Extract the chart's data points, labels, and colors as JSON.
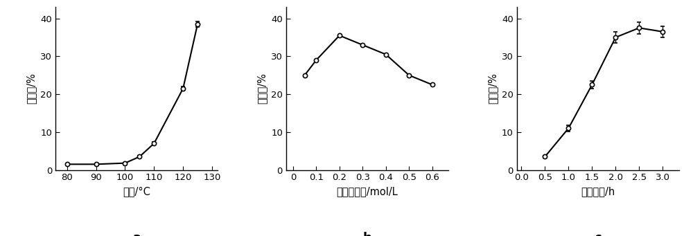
{
  "panel_a": {
    "x": [
      80,
      90,
      100,
      105,
      110,
      120,
      125
    ],
    "y": [
      1.5,
      1.5,
      1.8,
      3.5,
      7.0,
      21.5,
      38.5
    ],
    "yerr": [
      0.2,
      0.15,
      0.2,
      0.25,
      0.4,
      0.5,
      0.7
    ],
    "xlabel": "温度/°C",
    "ylabel": "降解率/%",
    "xlim": [
      76,
      132
    ],
    "ylim": [
      0,
      43
    ],
    "xticks": [
      80,
      90,
      100,
      110,
      120,
      130
    ],
    "yticks": [
      0,
      10,
      20,
      30,
      40
    ],
    "label": "a"
  },
  "panel_b": {
    "x": [
      0.05,
      0.1,
      0.2,
      0.3,
      0.4,
      0.5,
      0.6
    ],
    "y": [
      25.0,
      29.0,
      35.5,
      33.0,
      30.5,
      25.0,
      22.5
    ],
    "yerr": [
      0.0,
      0.0,
      0.0,
      0.0,
      0.0,
      0.0,
      0.0
    ],
    "xlabel": "双氧水浓度/mol/L",
    "ylabel": "降解率/%",
    "xlim": [
      -0.03,
      0.67
    ],
    "ylim": [
      0,
      43
    ],
    "xticks": [
      0,
      0.1,
      0.2,
      0.3,
      0.4,
      0.5,
      0.6
    ],
    "yticks": [
      0,
      10,
      20,
      30,
      40
    ],
    "label": "b"
  },
  "panel_c": {
    "x": [
      0.5,
      1.0,
      1.5,
      2.0,
      2.5,
      3.0
    ],
    "y": [
      3.5,
      11.0,
      22.5,
      35.0,
      37.5,
      36.5
    ],
    "yerr": [
      0.3,
      0.8,
      1.0,
      1.5,
      1.5,
      1.5
    ],
    "xlabel": "反应时间/h",
    "ylabel": "降解率/%",
    "xlim": [
      -0.1,
      3.35
    ],
    "ylim": [
      0,
      43
    ],
    "xticks": [
      0,
      0.5,
      1,
      1.5,
      2,
      2.5,
      3
    ],
    "yticks": [
      0,
      10,
      20,
      30,
      40
    ],
    "label": "c"
  },
  "line_color": "#000000",
  "marker": "o",
  "marker_facecolor": "#ffffff",
  "marker_edgecolor": "#000000",
  "marker_size": 4.5,
  "linewidth": 1.5,
  "capsize": 2.5,
  "elinewidth": 1.0,
  "ylabel_fontsize": 10.5,
  "xlabel_fontsize": 10.5,
  "tick_fontsize": 9.5,
  "label_fontsize": 13,
  "background_color": "#ffffff"
}
